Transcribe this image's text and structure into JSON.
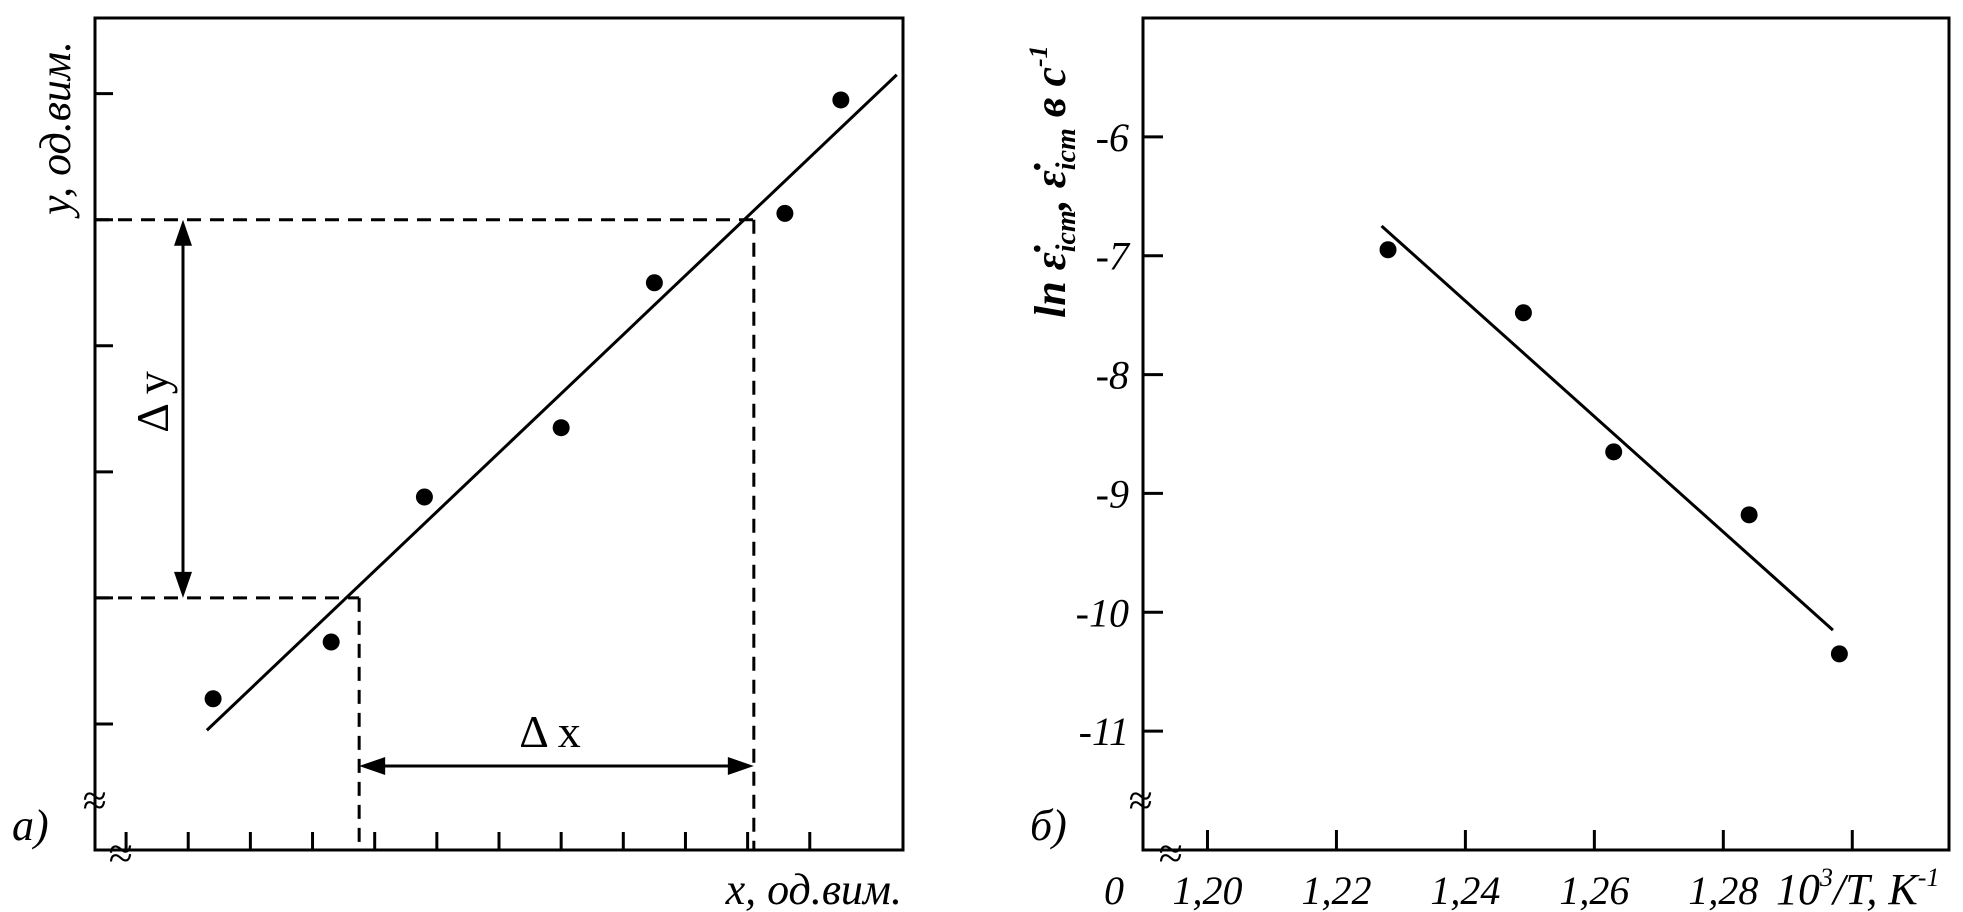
{
  "chart_data": [
    {
      "type": "scatter",
      "panel_label": "а)",
      "title": "",
      "xlabel": "x, од.вим.",
      "ylabel": "y, од.вим.",
      "xlim": [
        0,
        13
      ],
      "ylim": [
        0,
        6.6
      ],
      "grid": false,
      "x_ticks": [
        0.5,
        1.5,
        2.5,
        3.5,
        4.5,
        5.5,
        6.5,
        7.5,
        8.5,
        9.5,
        10.5,
        11.5
      ],
      "y_ticks": [
        1,
        2,
        3,
        4,
        5,
        6
      ],
      "points": [
        {
          "x": 1.9,
          "y": 1.2
        },
        {
          "x": 3.8,
          "y": 1.65
        },
        {
          "x": 5.3,
          "y": 2.8
        },
        {
          "x": 7.5,
          "y": 3.35
        },
        {
          "x": 9.0,
          "y": 4.5
        },
        {
          "x": 11.1,
          "y": 5.05
        },
        {
          "x": 12.0,
          "y": 5.95
        }
      ],
      "fit_line": {
        "x": [
          1.8,
          12.9
        ],
        "y": [
          0.95,
          6.15
        ]
      },
      "guides": {
        "x1": 4.25,
        "y1": 2.0,
        "x2": 10.6,
        "y2": 5.0
      },
      "annotations": {
        "dx": "Δ x",
        "dy": "Δ y",
        "break_symbol": "≈"
      }
    },
    {
      "type": "scatter",
      "panel_label": "б)",
      "title": "",
      "xlabel": {
        "base": "10",
        "exp": "3",
        "rest": "/T, K",
        "exp2": "-1"
      },
      "ylabel": {
        "pre": "ln ε̇",
        "sub1": "іст",
        "mid": ", ε̇",
        "sub2": "іст",
        "post": " в с",
        "exp": "-1"
      },
      "xlim": [
        1.19,
        1.315
      ],
      "ylim": [
        -12,
        -5
      ],
      "grid": false,
      "x_ticks": [
        1.2,
        1.22,
        1.24,
        1.26,
        1.28,
        1.3
      ],
      "x_tick_labels": [
        "1,20",
        "1,22",
        "1,24",
        "1,26",
        "1,28"
      ],
      "x_origin_label": "0",
      "y_ticks": [
        -6,
        -7,
        -8,
        -9,
        -10,
        -11
      ],
      "y_tick_labels": [
        "-6",
        "-7",
        "-8",
        "-9",
        "-10",
        "-11"
      ],
      "points": [
        {
          "x": 1.228,
          "y": -6.95
        },
        {
          "x": 1.249,
          "y": -7.48
        },
        {
          "x": 1.263,
          "y": -8.65
        },
        {
          "x": 1.284,
          "y": -9.18
        },
        {
          "x": 1.298,
          "y": -10.35
        }
      ],
      "fit_line": {
        "x": [
          1.227,
          1.297
        ],
        "y": [
          -6.75,
          -10.15
        ]
      },
      "annotations": {
        "break_symbol": "≈"
      }
    }
  ]
}
